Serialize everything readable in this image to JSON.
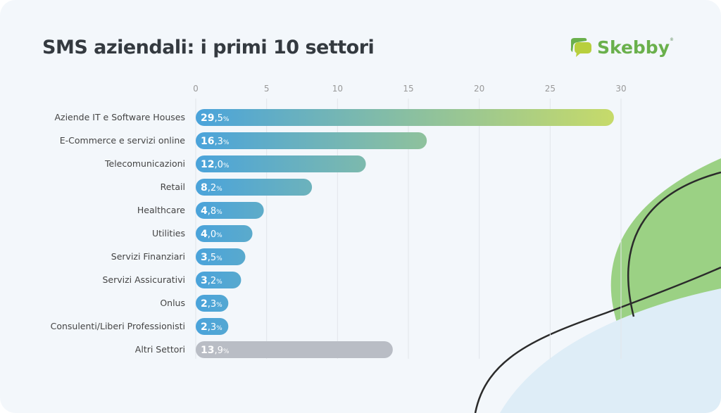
{
  "chart_data": {
    "type": "bar",
    "orientation": "horizontal",
    "title": "SMS aziendali: i primi 10 settori",
    "categories": [
      "Aziende IT e Software Houses",
      "E-Commerce e servizi online",
      "Telecomunicazioni",
      "Retail",
      "Healthcare",
      "Utilities",
      "Servizi Finanziari",
      "Servizi Assicurativi",
      "Onlus",
      "Consulenti/Liberi Professionisti",
      "Altri Settori"
    ],
    "values": [
      29.5,
      16.3,
      12.0,
      8.2,
      4.8,
      4.0,
      3.5,
      3.2,
      2.3,
      2.3,
      13.9
    ],
    "value_labels": [
      [
        "29",
        ",5",
        "%"
      ],
      [
        "16",
        ",3",
        "%"
      ],
      [
        "12",
        ",0",
        "%"
      ],
      [
        "8",
        ",2",
        "%"
      ],
      [
        "4",
        ",8",
        "%"
      ],
      [
        "4",
        ",0",
        "%"
      ],
      [
        "3",
        ",5",
        "%"
      ],
      [
        "3",
        ",2",
        "%"
      ],
      [
        "2",
        ",3",
        "%"
      ],
      [
        "2",
        ",3",
        "%"
      ],
      [
        "13",
        ",9",
        "%"
      ]
    ],
    "xticks": [
      0,
      5,
      10,
      15,
      20,
      25,
      30
    ],
    "xlim": [
      0,
      30
    ],
    "grid": true,
    "xlabel": "",
    "ylabel": "",
    "colors": {
      "gradient_start": "#4aa3db",
      "gradient_end": "#c8db68",
      "other": "#b9bdc5"
    }
  },
  "brand": {
    "name": "Skebby",
    "reg": "®"
  }
}
